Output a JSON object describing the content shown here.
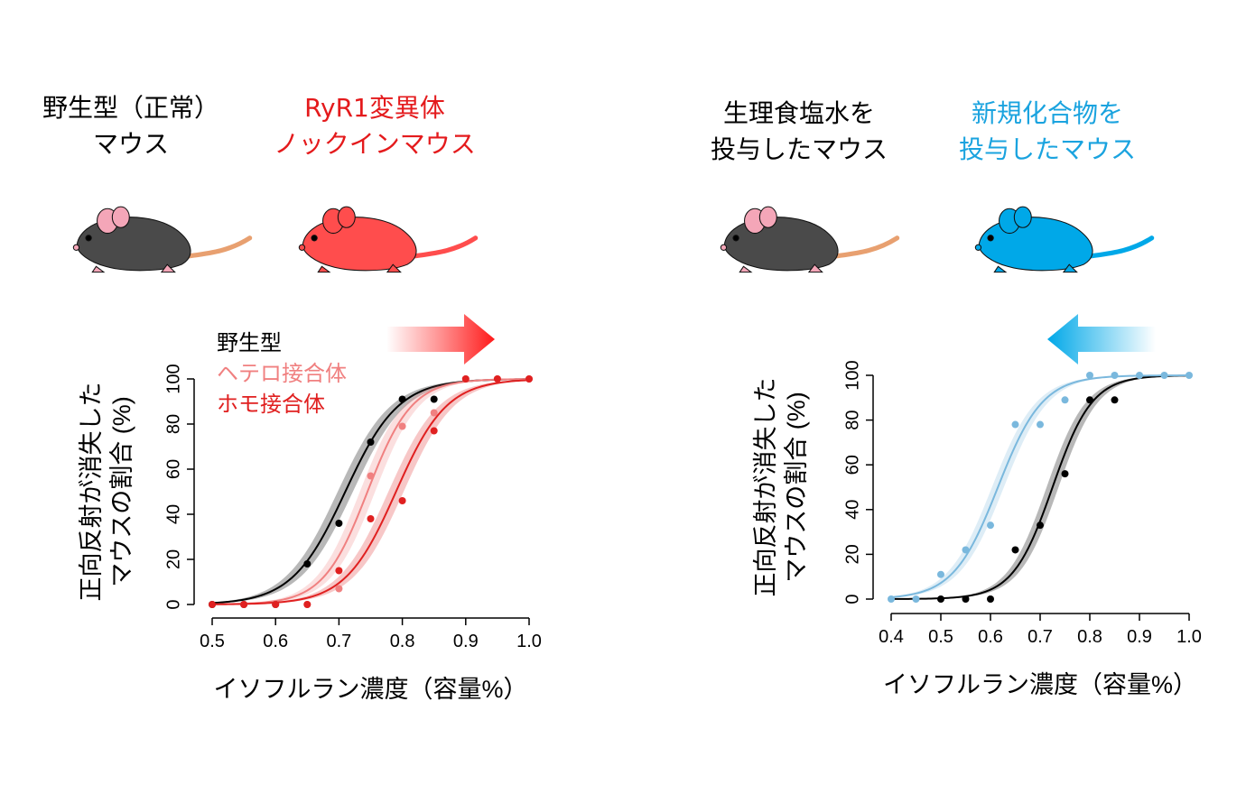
{
  "labels": {
    "wild_type": [
      "野生型（正常）",
      "マウス"
    ],
    "ryr1": [
      "RyR1変異体",
      "ノックインマウス"
    ],
    "saline": [
      "生理食塩水を",
      "投与したマウス"
    ],
    "compound": [
      "新規化合物を",
      "投与したマウス"
    ]
  },
  "colors": {
    "black": "#000000",
    "hetero": "#f08080",
    "homo": "#e02020",
    "ryr1_mouse": "#ff4d4d",
    "compound": "#7ab8dd",
    "compound_mouse": "#00a8e8",
    "mouse_gray": "#4a4a4a"
  },
  "icons": {
    "left_arrow": "arrow-right-red-gradient",
    "right_arrow": "arrow-left-blue-gradient",
    "mice": [
      "mouse-gray",
      "mouse-red",
      "mouse-gray",
      "mouse-blue"
    ]
  },
  "chart_data": [
    {
      "type": "line",
      "xlabel": "イソフルラン濃度（容量%）",
      "ylabel": [
        "正向反射が消失した",
        "マウスの割合 (%)"
      ],
      "xlim": [
        0.5,
        1.0
      ],
      "ylim": [
        0,
        100
      ],
      "xticks": [
        "0.5",
        "0.6",
        "0.7",
        "0.8",
        "0.9",
        "1.0"
      ],
      "yticks": [
        "0",
        "20",
        "40",
        "60",
        "80",
        "100"
      ],
      "legend": [
        "野生型",
        "ヘテロ接合体",
        "ホモ接合体"
      ],
      "legend_position": "top-left",
      "series": [
        {
          "name": "野生型",
          "color": "#000000",
          "ec50": 0.71,
          "slope": 0.042,
          "points": [
            [
              0.5,
              0
            ],
            [
              0.55,
              0
            ],
            [
              0.6,
              0
            ],
            [
              0.65,
              18
            ],
            [
              0.7,
              36
            ],
            [
              0.75,
              72
            ],
            [
              0.8,
              91
            ],
            [
              0.85,
              91
            ]
          ]
        },
        {
          "name": "ヘテロ接合体",
          "color": "#f08080",
          "ec50": 0.745,
          "slope": 0.035,
          "points": [
            [
              0.55,
              0
            ],
            [
              0.6,
              0
            ],
            [
              0.65,
              0
            ],
            [
              0.7,
              7
            ],
            [
              0.75,
              57
            ],
            [
              0.8,
              79
            ],
            [
              0.85,
              85
            ],
            [
              0.9,
              100
            ],
            [
              0.95,
              100
            ],
            [
              1.0,
              100
            ]
          ]
        },
        {
          "name": "ホモ接合体",
          "color": "#e02020",
          "ec50": 0.79,
          "slope": 0.04,
          "points": [
            [
              0.5,
              0
            ],
            [
              0.55,
              0
            ],
            [
              0.6,
              0
            ],
            [
              0.65,
              0
            ],
            [
              0.7,
              15
            ],
            [
              0.75,
              38
            ],
            [
              0.8,
              46
            ],
            [
              0.85,
              77
            ],
            [
              0.9,
              100
            ],
            [
              0.95,
              100
            ],
            [
              1.0,
              100
            ]
          ]
        }
      ]
    },
    {
      "type": "line",
      "xlabel": "イソフルラン濃度（容量%）",
      "ylabel": [
        "正向反射が消失した",
        "マウスの割合 (%)"
      ],
      "xlim": [
        0.4,
        1.0
      ],
      "ylim": [
        0,
        100
      ],
      "xticks": [
        "0.4",
        "0.5",
        "0.6",
        "0.7",
        "0.8",
        "0.9",
        "1.0"
      ],
      "yticks": [
        "0",
        "20",
        "40",
        "60",
        "80",
        "100"
      ],
      "series": [
        {
          "name": "生理食塩水を投与したマウス",
          "color": "#000000",
          "ec50": 0.725,
          "slope": 0.04,
          "points": [
            [
              0.5,
              0
            ],
            [
              0.55,
              0
            ],
            [
              0.6,
              0
            ],
            [
              0.65,
              22
            ],
            [
              0.7,
              33
            ],
            [
              0.75,
              56
            ],
            [
              0.8,
              89
            ],
            [
              0.85,
              89
            ]
          ]
        },
        {
          "name": "新規化合物を投与したマウス",
          "color": "#7ab8dd",
          "ec50": 0.615,
          "slope": 0.045,
          "points": [
            [
              0.4,
              0
            ],
            [
              0.45,
              0
            ],
            [
              0.5,
              11
            ],
            [
              0.55,
              22
            ],
            [
              0.6,
              33
            ],
            [
              0.65,
              78
            ],
            [
              0.7,
              78
            ],
            [
              0.75,
              89
            ],
            [
              0.8,
              100
            ],
            [
              0.85,
              100
            ],
            [
              0.9,
              100
            ],
            [
              0.95,
              100
            ],
            [
              1.0,
              100
            ]
          ]
        }
      ]
    }
  ]
}
